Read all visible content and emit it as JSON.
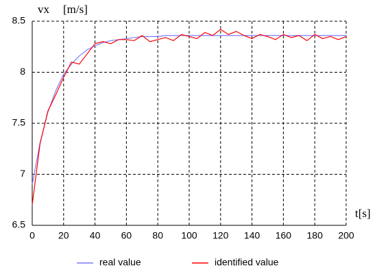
{
  "chart_data": {
    "type": "line",
    "y_label": "vx",
    "y_unit": "[m/s]",
    "x_label": "t[s]",
    "x": [
      0,
      5,
      10,
      15,
      20,
      25,
      30,
      35,
      40,
      45,
      50,
      55,
      60,
      65,
      70,
      75,
      80,
      85,
      90,
      95,
      100,
      105,
      110,
      115,
      120,
      125,
      130,
      135,
      140,
      145,
      150,
      155,
      160,
      165,
      170,
      175,
      180,
      185,
      190,
      195,
      200
    ],
    "series": [
      {
        "name": "real value",
        "color": "#7b7bff",
        "values": [
          6.9,
          7.31,
          7.61,
          7.82,
          7.98,
          8.08,
          8.16,
          8.22,
          8.26,
          8.29,
          8.31,
          8.32,
          8.33,
          8.34,
          8.35,
          8.35,
          8.35,
          8.36,
          8.36,
          8.36,
          8.36,
          8.36,
          8.36,
          8.36,
          8.36,
          8.36,
          8.36,
          8.36,
          8.36,
          8.36,
          8.36,
          8.36,
          8.36,
          8.36,
          8.36,
          8.36,
          8.36,
          8.36,
          8.36,
          8.36,
          8.36
        ]
      },
      {
        "name": "identified value",
        "color": "#ff0000",
        "values": [
          6.7,
          7.3,
          7.62,
          7.78,
          7.95,
          8.1,
          8.08,
          8.18,
          8.28,
          8.3,
          8.28,
          8.32,
          8.32,
          8.31,
          8.36,
          8.3,
          8.32,
          8.34,
          8.31,
          8.37,
          8.35,
          8.33,
          8.39,
          8.36,
          8.42,
          8.37,
          8.4,
          8.36,
          8.33,
          8.37,
          8.35,
          8.32,
          8.37,
          8.34,
          8.36,
          8.31,
          8.37,
          8.33,
          8.35,
          8.32,
          8.35
        ]
      }
    ],
    "xlim": [
      0,
      200
    ],
    "xticks": [
      0,
      20,
      40,
      60,
      80,
      100,
      120,
      140,
      160,
      180,
      200
    ],
    "ylim": [
      6.5,
      8.5
    ],
    "yticks": [
      6.5,
      7,
      7.5,
      8,
      8.5
    ],
    "grid": true
  }
}
